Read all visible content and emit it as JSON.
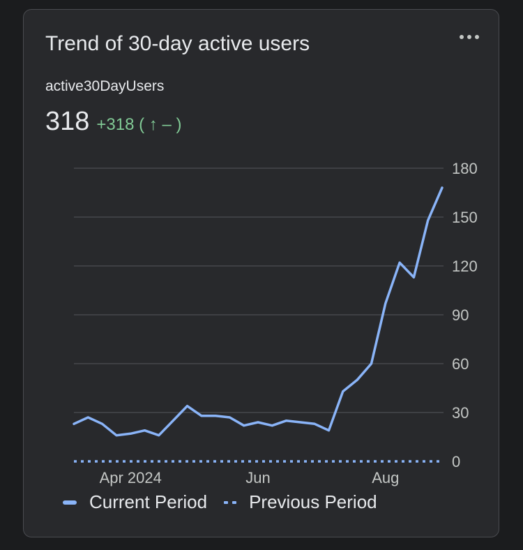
{
  "card": {
    "title": "Trend of 30-day active users",
    "metric_label": "active30DayUsers",
    "metric_value": "318",
    "metric_delta": "+318 ( ↑ – )",
    "more_icon": "more-horiz-icon"
  },
  "colors": {
    "current": "#8ab4f8",
    "previous": "#8ab4f8",
    "delta": "#81c995",
    "grid": "#46484c"
  },
  "chart_data": {
    "type": "line",
    "title": "",
    "xlabel": "",
    "ylabel": "",
    "ylim": [
      0,
      180
    ],
    "yticks": [
      "0",
      "30",
      "60",
      "90",
      "120",
      "150",
      "180"
    ],
    "xtick_labels": [
      {
        "label": "Apr 2024",
        "index": 4
      },
      {
        "label": "Jun",
        "index": 13
      },
      {
        "label": "Aug",
        "index": 22
      }
    ],
    "grid": true,
    "legend_position": "bottom",
    "series": [
      {
        "name": "Current Period",
        "style": "solid",
        "values": [
          23,
          27,
          23,
          16,
          17,
          19,
          16,
          25,
          34,
          28,
          28,
          27,
          22,
          24,
          22,
          25,
          24,
          23,
          19,
          43,
          50,
          60,
          97,
          122,
          113,
          148,
          168
        ]
      },
      {
        "name": "Previous Period",
        "style": "dotted",
        "values": [
          0,
          0,
          0,
          0,
          0,
          0,
          0,
          0,
          0,
          0,
          0,
          0,
          0,
          0,
          0,
          0,
          0,
          0,
          0,
          0,
          0,
          0,
          0,
          0,
          0,
          0,
          0
        ]
      }
    ]
  }
}
